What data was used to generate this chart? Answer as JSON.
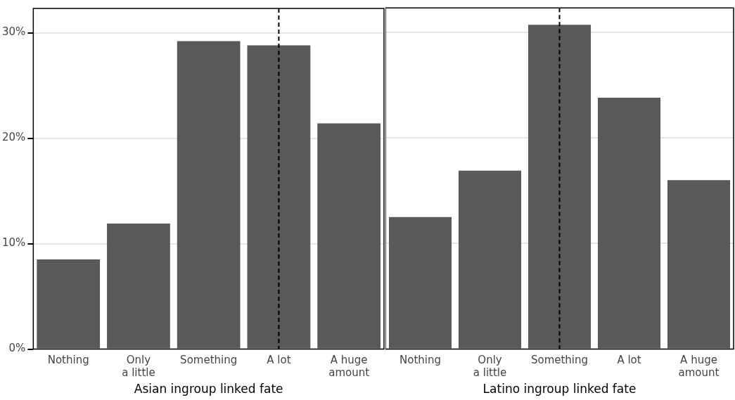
{
  "chart_data": [
    {
      "type": "bar",
      "xlabel": "Asian ingroup linked fate",
      "categories": [
        "Nothing",
        "Only\na little",
        "Something",
        "A lot",
        "A huge\namount"
      ],
      "values": [
        8.5,
        11.9,
        29.2,
        28.8,
        21.4
      ],
      "color": "#595959",
      "ylim": [
        0,
        32.3
      ],
      "yticks": [
        {
          "value": 0,
          "label": "0%"
        },
        {
          "value": 10,
          "label": "10%"
        },
        {
          "value": 20,
          "label": "20%"
        },
        {
          "value": 30,
          "label": "30%"
        }
      ],
      "grid": "y",
      "ref_lines": [
        {
          "axis": "x",
          "value": "A lot",
          "line_style": "dashed",
          "color": "#000000"
        }
      ]
    },
    {
      "type": "bar",
      "xlabel": "Latino ingroup linked fate",
      "categories": [
        "Nothing",
        "Only\na little",
        "Something",
        "A lot",
        "A huge\namount"
      ],
      "values": [
        12.5,
        16.9,
        30.7,
        23.8,
        16.0
      ],
      "color": "#595959",
      "ylim": [
        0,
        32.3
      ],
      "yticks": [
        0,
        10,
        20,
        30
      ],
      "grid": "y",
      "tick_labels": "x",
      "ref_lines": [
        {
          "axis": "x",
          "value": "Something",
          "line_style": "dashed",
          "color": "#000000"
        }
      ]
    }
  ]
}
